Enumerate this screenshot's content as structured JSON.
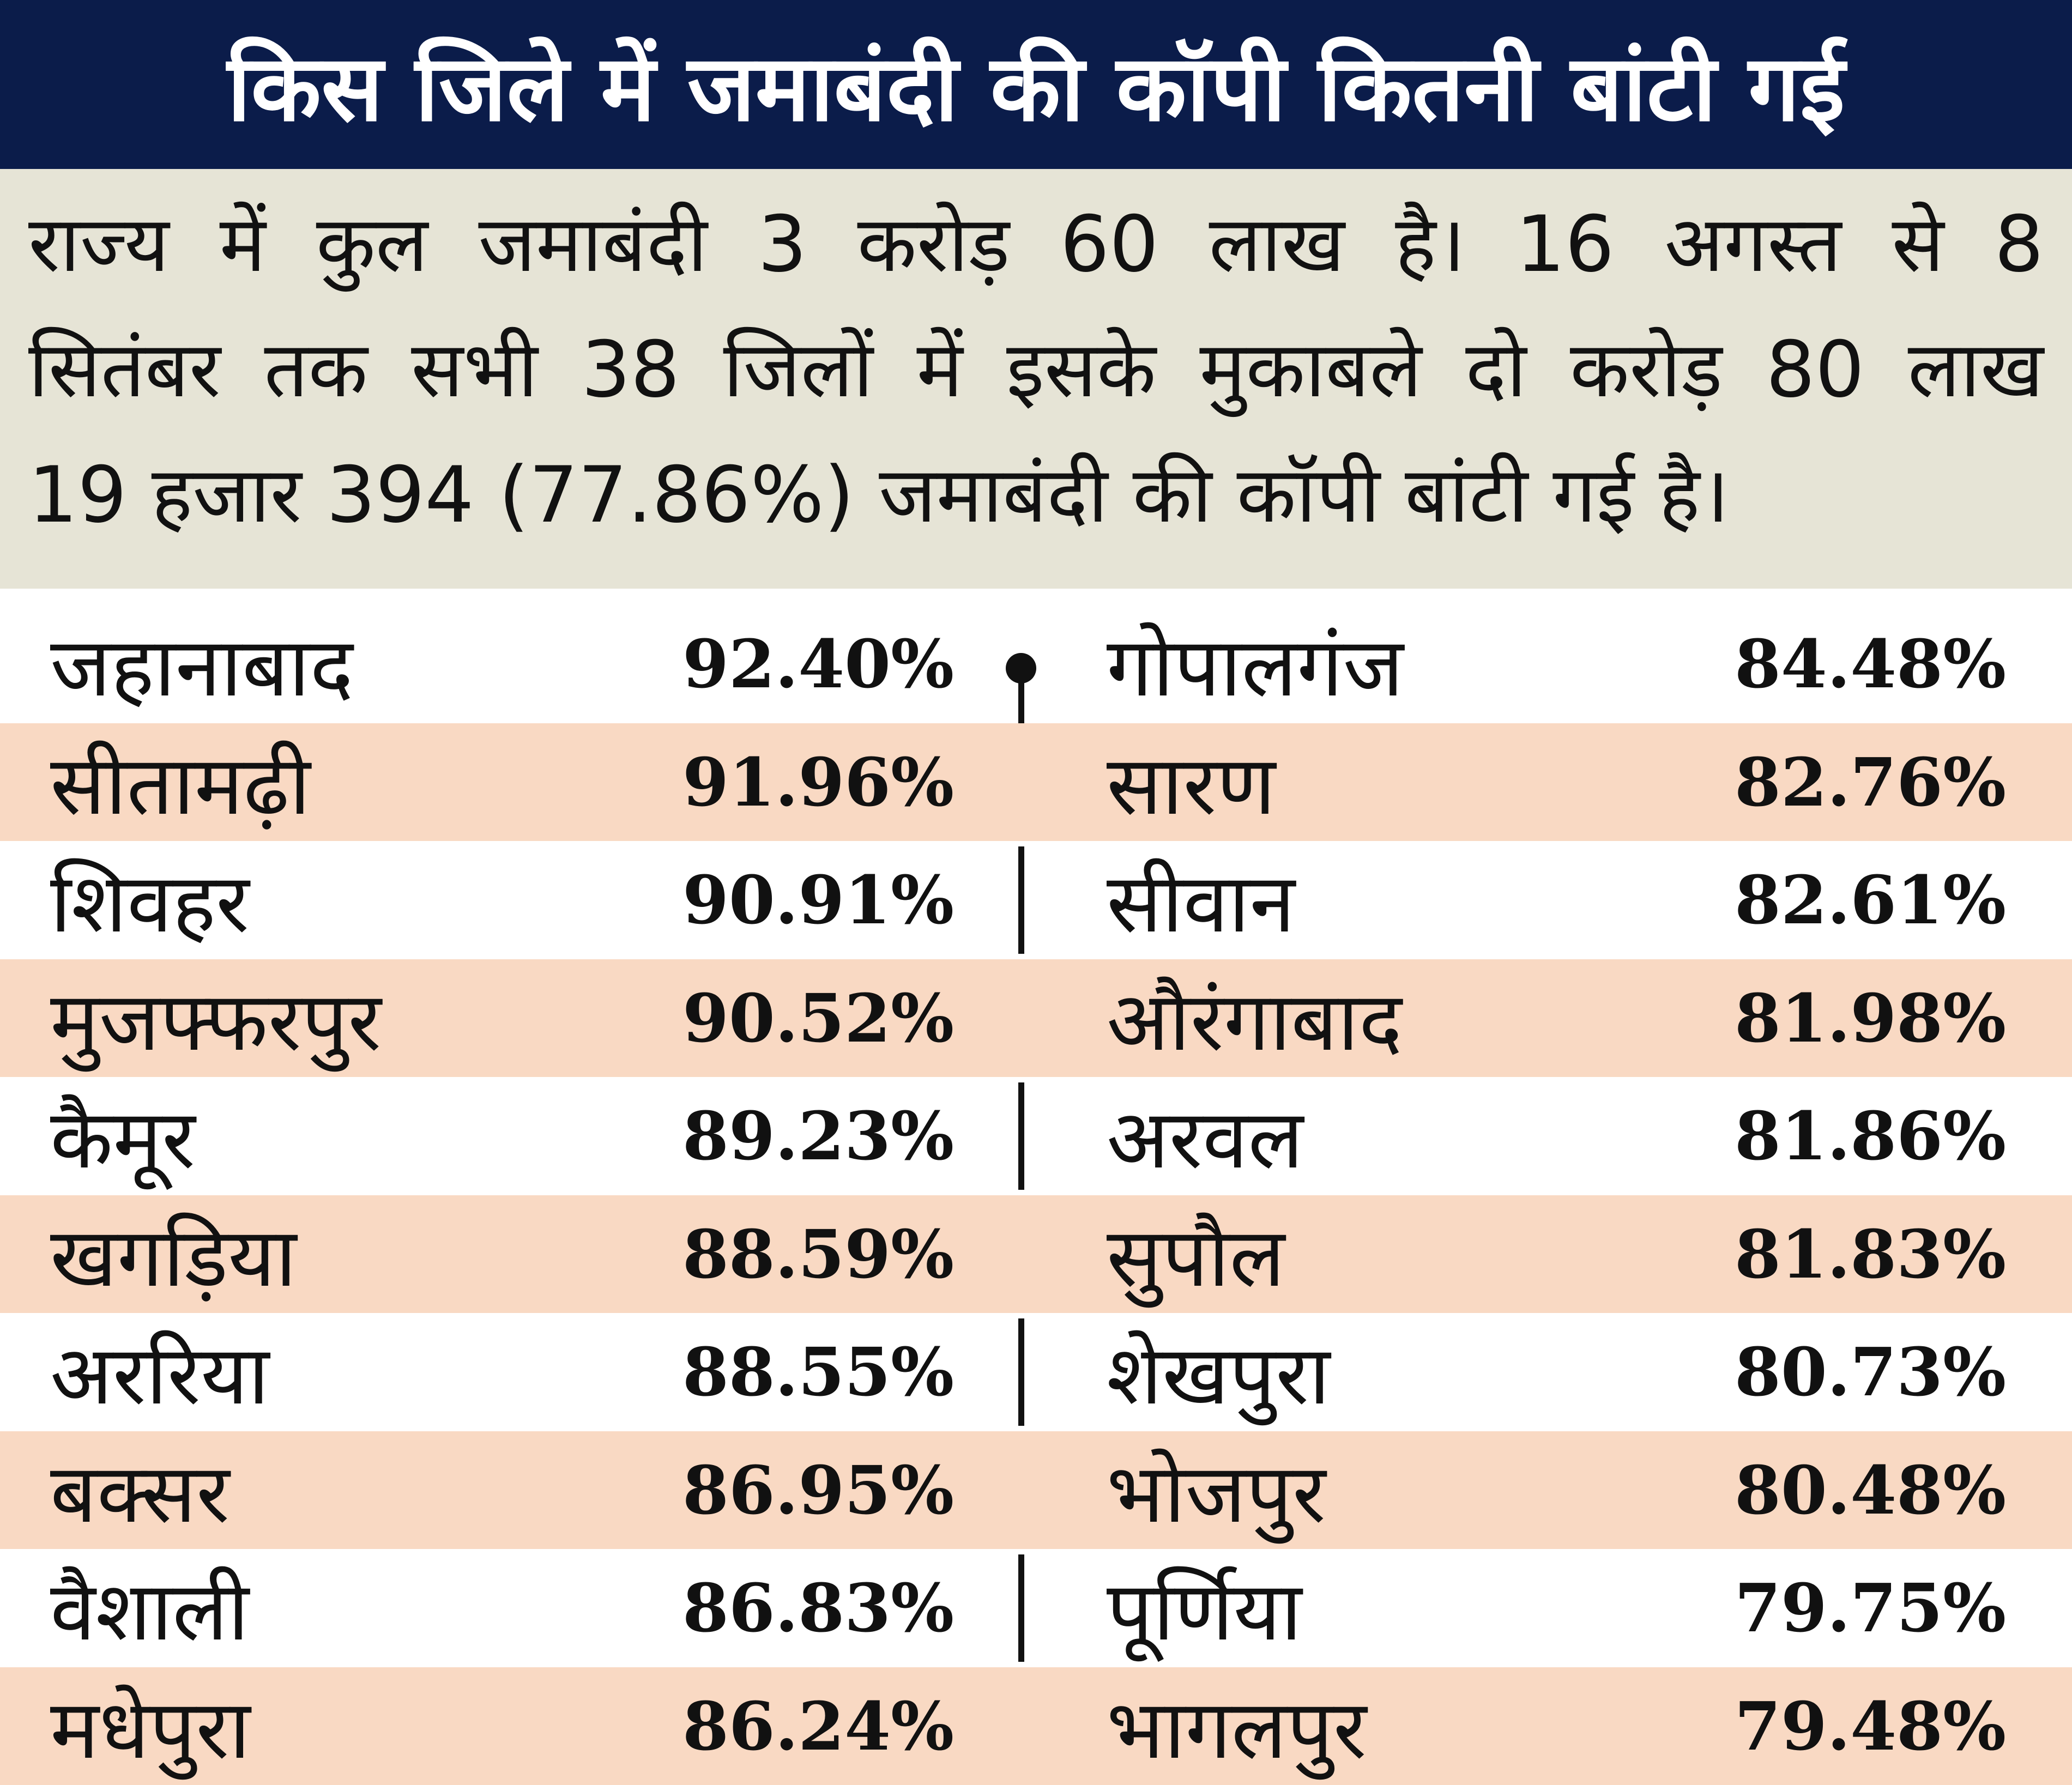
{
  "chart_data": {
    "type": "table",
    "title": "किस जिले में जमाबंदी की कॉपी कितनी बांटी गई",
    "summary_lines": [
      "राज्य में कुल जमाबंदी 3 करोड़ 60 लाख है। 16 अगस्त से 8",
      "सितंबर तक सभी 38 जिलों में इसके मुकाबले दो करोड़ 80 लाख",
      "19 हजार 394 (77.86%) जमाबंदी की कॉपी बांटी गई है।"
    ],
    "rows": [
      {
        "left": {
          "district": "जहानाबाद",
          "value": "92.40%"
        },
        "right": {
          "district": "गोपालगंज",
          "value": "84.48%"
        }
      },
      {
        "left": {
          "district": "सीतामढ़ी",
          "value": "91.96%"
        },
        "right": {
          "district": "सारण",
          "value": "82.76%"
        }
      },
      {
        "left": {
          "district": "शिवहर",
          "value": "90.91%"
        },
        "right": {
          "district": "सीवान",
          "value": "82.61%"
        }
      },
      {
        "left": {
          "district": "मुजफ्फरपुर",
          "value": "90.52%"
        },
        "right": {
          "district": "औरंगाबाद",
          "value": "81.98%"
        }
      },
      {
        "left": {
          "district": "कैमूर",
          "value": "89.23%"
        },
        "right": {
          "district": "अरवल",
          "value": "81.86%"
        }
      },
      {
        "left": {
          "district": "खगड़िया",
          "value": "88.59%"
        },
        "right": {
          "district": "सुपौल",
          "value": "81.83%"
        }
      },
      {
        "left": {
          "district": "अररिया",
          "value": "88.55%"
        },
        "right": {
          "district": "शेखपुरा",
          "value": "80.73%"
        }
      },
      {
        "left": {
          "district": "बक्सर",
          "value": "86.95%"
        },
        "right": {
          "district": "भोजपुर",
          "value": "80.48%"
        }
      },
      {
        "left": {
          "district": "वैशाली",
          "value": "86.83%"
        },
        "right": {
          "district": "पूर्णिया",
          "value": "79.75%"
        }
      },
      {
        "left": {
          "district": "मधेपुरा",
          "value": "86.24%"
        },
        "right": {
          "district": "भागलपुर",
          "value": "79.48%"
        }
      }
    ]
  },
  "colors": {
    "title_bg": "#0b1c4a",
    "title_text": "#ffffff",
    "summary_bg": "#e6e4d6",
    "stripe": "#f9d9c3",
    "text": "#111111"
  }
}
